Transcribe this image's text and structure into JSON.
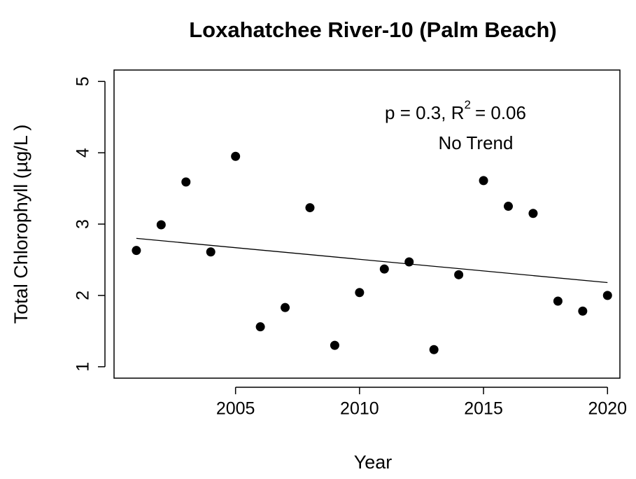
{
  "chart_data": {
    "type": "scatter",
    "title": "Loxahatchee River-10 (Palm Beach)",
    "x_label": "Year",
    "y_label": "Total Chlorophyll (µg/L )",
    "annotation": {
      "stat_text": "p = 0.3, R",
      "superscript": "2",
      "stat_value": "= 0.06",
      "trend_text": "No Trend"
    },
    "x": [
      2001,
      2002,
      2003,
      2004,
      2005,
      2006,
      2007,
      2008,
      2009,
      2010,
      2011,
      2012,
      2013,
      2014,
      2015,
      2016,
      2017,
      2018,
      2019,
      2020
    ],
    "values": [
      2.63,
      2.99,
      3.59,
      2.61,
      3.95,
      1.56,
      1.83,
      3.23,
      1.3,
      2.04,
      2.37,
      2.47,
      1.24,
      2.29,
      3.61,
      3.25,
      3.15,
      1.92,
      1.78,
      2.0
    ],
    "color": "#000000",
    "trend": {
      "x": [
        2001,
        2020
      ],
      "values": [
        2.8,
        2.18
      ],
      "color": "#000000"
    },
    "xlim": [
      2000.1,
      2020.5
    ],
    "ylim": [
      0.84,
      5.16
    ],
    "xticks": [
      2005,
      2010,
      2015,
      2020
    ],
    "yticks": [
      1,
      2,
      3,
      4,
      5
    ],
    "grid": false
  }
}
